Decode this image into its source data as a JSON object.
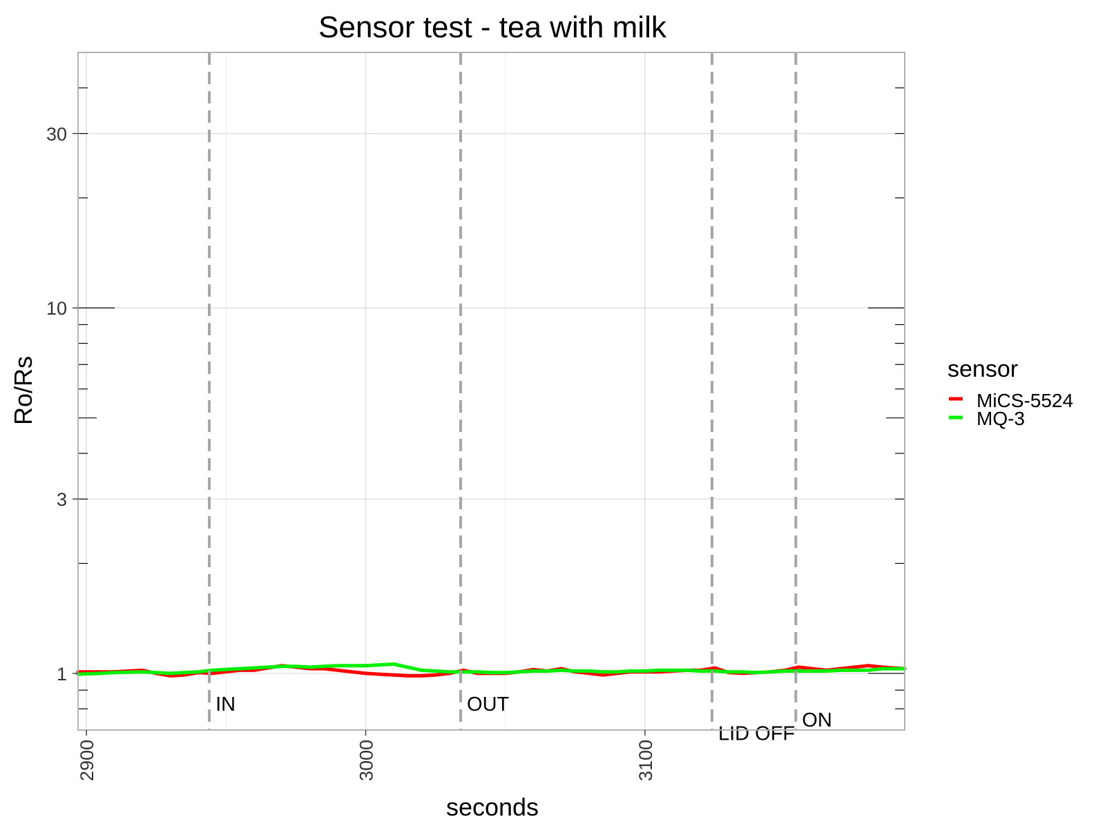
{
  "chart_data": {
    "type": "line",
    "title": "Sensor test - tea with milk",
    "xlabel": "seconds",
    "ylabel": "Ro/Rs",
    "y_scale": "log",
    "xlim": [
      2897,
      3193
    ],
    "ylim": [
      0.7,
      50
    ],
    "x_ticks": [
      {
        "value": 2900,
        "label": "2900"
      },
      {
        "value": 3000,
        "label": "3000"
      },
      {
        "value": 3100,
        "label": "3100"
      }
    ],
    "y_ticks": [
      {
        "value": 1,
        "label": "1"
      },
      {
        "value": 3,
        "label": "3"
      },
      {
        "value": 10,
        "label": "10"
      },
      {
        "value": 30,
        "label": "30"
      }
    ],
    "grid": true,
    "legend": {
      "title": "sensor",
      "position": "right"
    },
    "series": [
      {
        "name": "MiCS-5524",
        "color": "#ff0000",
        "x": [
          2897,
          2905,
          2910,
          2920,
          2925,
          2930,
          2935,
          2940,
          2945,
          2950,
          2955,
          2960,
          2965,
          2970,
          2975,
          2980,
          2985,
          2990,
          2995,
          3000,
          3005,
          3010,
          3015,
          3020,
          3025,
          3030,
          3035,
          3040,
          3045,
          3050,
          3055,
          3060,
          3065,
          3070,
          3075,
          3080,
          3085,
          3090,
          3095,
          3100,
          3105,
          3110,
          3115,
          3120,
          3125,
          3130,
          3135,
          3140,
          3145,
          3150,
          3155,
          3160,
          3165,
          3170,
          3175,
          3180,
          3185,
          3193
        ],
        "y": [
          1.01,
          1.01,
          1.01,
          1.02,
          1.0,
          0.985,
          0.99,
          1.005,
          1.0,
          1.01,
          1.02,
          1.02,
          1.035,
          1.05,
          1.04,
          1.03,
          1.03,
          1.02,
          1.01,
          1.0,
          0.995,
          0.99,
          0.985,
          0.985,
          0.99,
          1.0,
          1.02,
          1.0,
          1.0,
          1.0,
          1.01,
          1.025,
          1.015,
          1.03,
          1.01,
          1.0,
          0.99,
          1.0,
          1.01,
          1.01,
          1.01,
          1.015,
          1.02,
          1.02,
          1.035,
          1.005,
          1.0,
          1.005,
          1.01,
          1.02,
          1.04,
          1.03,
          1.02,
          1.03,
          1.04,
          1.05,
          1.04,
          1.03
        ]
      },
      {
        "name": "MQ-3",
        "color": "#00ee00",
        "x": [
          2897,
          2905,
          2910,
          2920,
          2925,
          2930,
          2935,
          2940,
          2945,
          2950,
          2955,
          2960,
          2965,
          2970,
          2975,
          2980,
          2985,
          2990,
          2995,
          3000,
          3005,
          3010,
          3015,
          3020,
          3025,
          3030,
          3035,
          3040,
          3045,
          3050,
          3055,
          3060,
          3065,
          3070,
          3075,
          3080,
          3085,
          3090,
          3095,
          3100,
          3105,
          3110,
          3115,
          3120,
          3125,
          3130,
          3135,
          3140,
          3145,
          3150,
          3155,
          3160,
          3165,
          3170,
          3175,
          3180,
          3185,
          3193
        ],
        "y": [
          0.995,
          1.0,
          1.005,
          1.01,
          1.005,
          1.0,
          1.005,
          1.01,
          1.02,
          1.025,
          1.03,
          1.035,
          1.04,
          1.045,
          1.045,
          1.04,
          1.045,
          1.05,
          1.05,
          1.05,
          1.055,
          1.06,
          1.04,
          1.02,
          1.015,
          1.01,
          1.01,
          1.01,
          1.005,
          1.005,
          1.01,
          1.015,
          1.015,
          1.02,
          1.015,
          1.015,
          1.01,
          1.01,
          1.015,
          1.015,
          1.02,
          1.02,
          1.02,
          1.015,
          1.015,
          1.01,
          1.01,
          1.005,
          1.01,
          1.015,
          1.015,
          1.015,
          1.015,
          1.02,
          1.02,
          1.02,
          1.03,
          1.03
        ]
      }
    ],
    "annotations": [
      {
        "x": 2944,
        "label": "IN",
        "label_y": 0.83
      },
      {
        "x": 3034,
        "label": "OUT",
        "label_y": 0.83
      },
      {
        "x": 3124,
        "label": "LID OFF",
        "label_y": 0.69
      },
      {
        "x": 3154,
        "label": "ON",
        "label_y": 0.75
      }
    ]
  }
}
